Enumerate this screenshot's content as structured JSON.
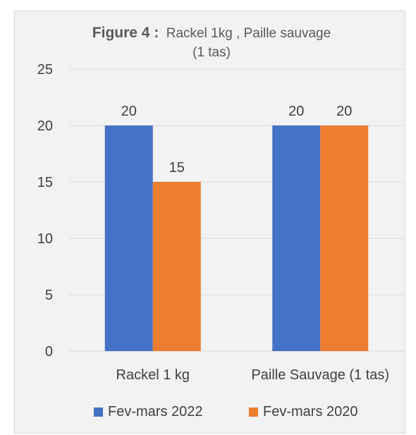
{
  "chart_data": {
    "type": "bar",
    "title_bold": "Figure 4 :",
    "title_rest": "Rackel 1kg , Paille sauvage",
    "title_line2": "(1 tas)",
    "categories": [
      "Rackel 1 kg",
      "Paille Sauvage (1 tas)"
    ],
    "series": [
      {
        "name": "Fev-mars 2022",
        "values": [
          20,
          20
        ],
        "color": "#4472c4"
      },
      {
        "name": "Fev-mars 2020",
        "values": [
          15,
          20
        ],
        "color": "#ed7d31"
      }
    ],
    "ylim": [
      0,
      25
    ],
    "yticks": [
      0,
      5,
      10,
      15,
      20,
      25
    ],
    "grid": true,
    "legend_position": "bottom"
  }
}
